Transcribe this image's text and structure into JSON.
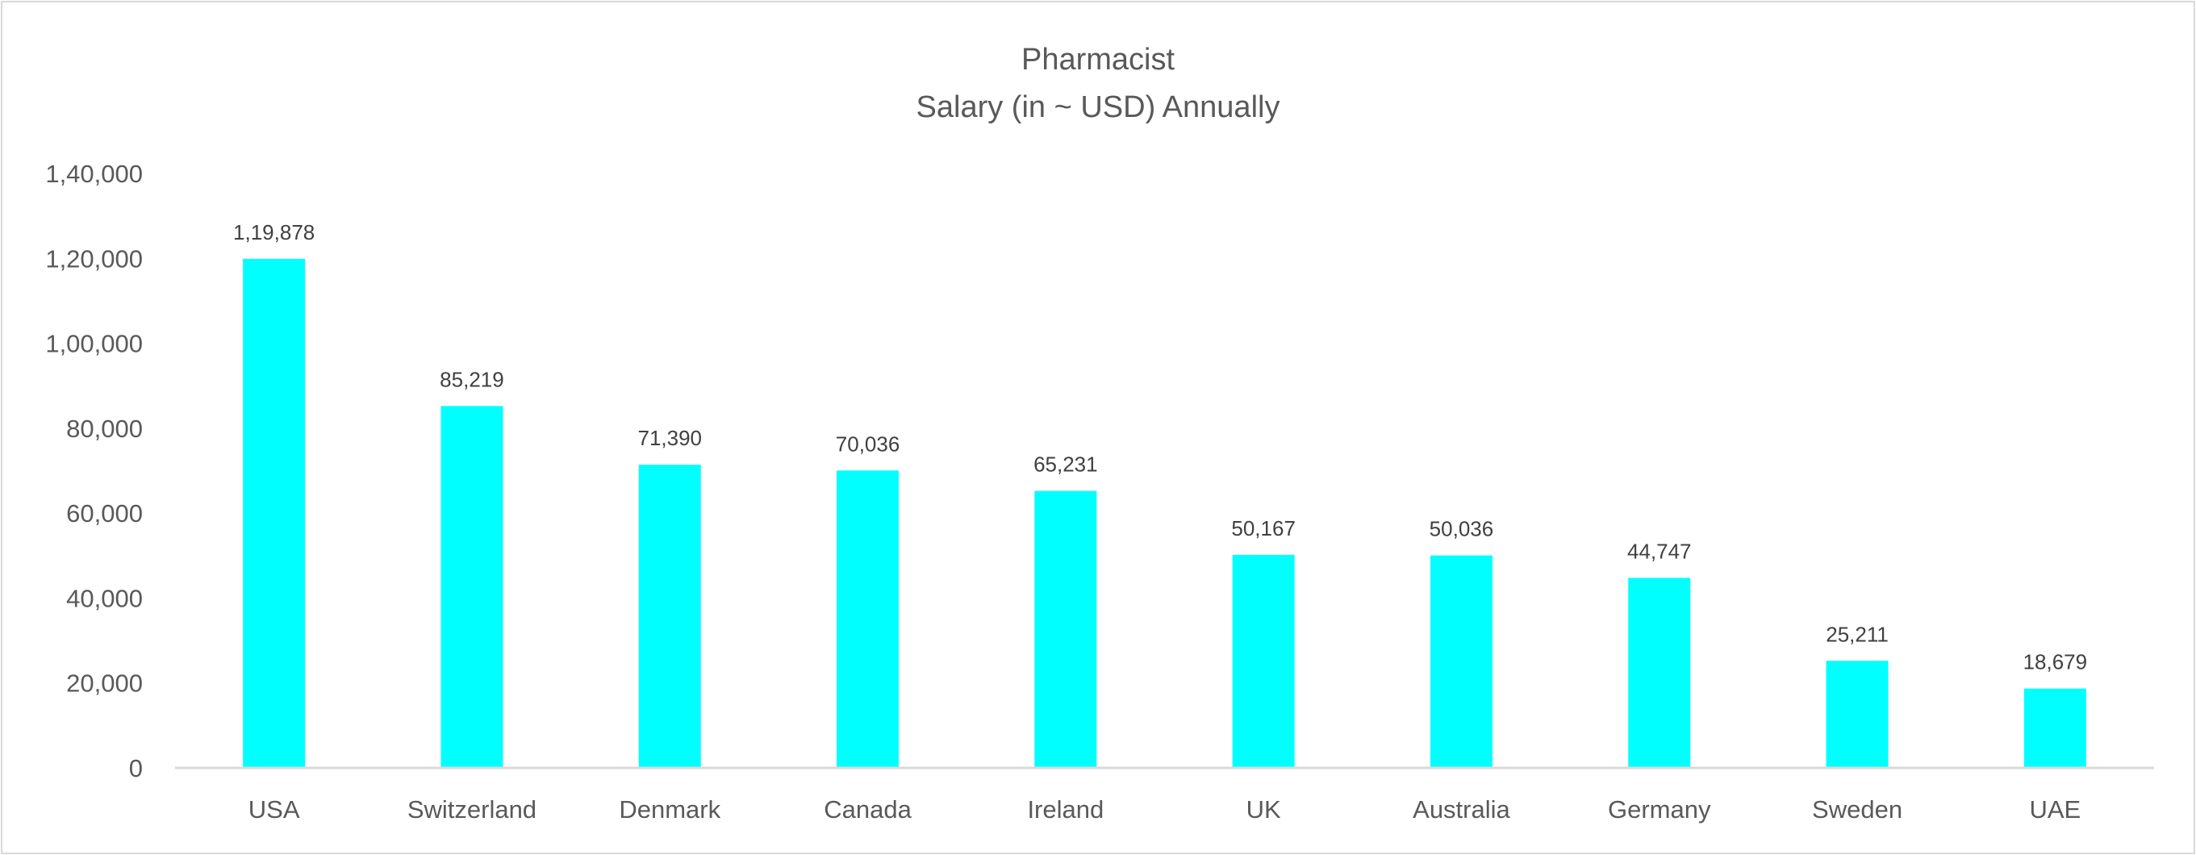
{
  "chart_data": {
    "type": "bar",
    "title": "Pharmacist",
    "subtitle": "Salary (in ~ USD) Annually",
    "xlabel": "",
    "ylabel": "",
    "categories": [
      "USA",
      "Switzerland",
      "Denmark",
      "Canada",
      "Ireland",
      "UK",
      "Australia",
      "Germany",
      "Sweden",
      "UAE"
    ],
    "values": [
      119878,
      85219,
      71390,
      70036,
      65231,
      50167,
      50036,
      44747,
      25211,
      18679
    ],
    "data_labels": [
      "1,19,878",
      "85,219",
      "71,390",
      "70,036",
      "65,231",
      "50,167",
      "50,036",
      "44,747",
      "25,211",
      "18,679"
    ],
    "ylim": [
      0,
      140000
    ],
    "yticks": [
      0,
      20000,
      40000,
      60000,
      80000,
      100000,
      120000,
      140000
    ],
    "ytick_labels": [
      "0",
      "20,000",
      "40,000",
      "60,000",
      "80,000",
      "1,00,000",
      "1,20,000",
      "1,40,000"
    ],
    "grid": false,
    "legend": "none",
    "colors": {
      "bar": "#00FFFF",
      "axis": "#d9d9d9",
      "text": "#595959",
      "label": "#404040"
    }
  }
}
